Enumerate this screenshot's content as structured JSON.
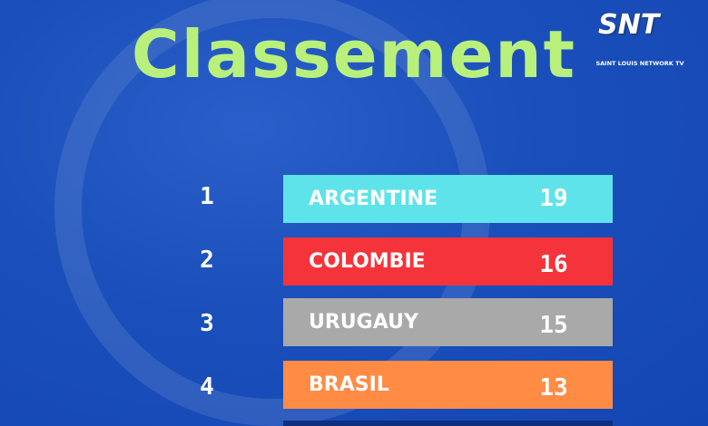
{
  "title": "Classement",
  "logo": {
    "name": "SNT",
    "subtitle": "SAINT LOUIS NETWORK TV"
  },
  "rows": [
    {
      "rank": 1,
      "team": "ARGENTINE",
      "points": 19
    },
    {
      "rank": 2,
      "team": "COLOMBIE",
      "points": 16
    },
    {
      "rank": 3,
      "team": "URUGAUY",
      "points": 15
    },
    {
      "rank": 4,
      "team": "BRASIL",
      "points": 13
    }
  ]
}
